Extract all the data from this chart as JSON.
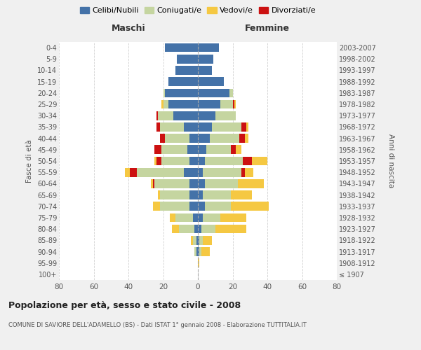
{
  "age_groups": [
    "100+",
    "95-99",
    "90-94",
    "85-89",
    "80-84",
    "75-79",
    "70-74",
    "65-69",
    "60-64",
    "55-59",
    "50-54",
    "45-49",
    "40-44",
    "35-39",
    "30-34",
    "25-29",
    "20-24",
    "15-19",
    "10-14",
    "5-9",
    "0-4"
  ],
  "birth_years": [
    "≤ 1907",
    "1908-1912",
    "1913-1917",
    "1918-1922",
    "1923-1927",
    "1928-1932",
    "1933-1937",
    "1938-1942",
    "1943-1947",
    "1948-1952",
    "1953-1957",
    "1958-1962",
    "1963-1967",
    "1968-1972",
    "1973-1977",
    "1978-1982",
    "1983-1987",
    "1988-1992",
    "1993-1997",
    "1998-2002",
    "2003-2007"
  ],
  "colors": {
    "celibi": "#4472a8",
    "coniugati": "#c5d5a0",
    "vedovi": "#f5c842",
    "divorziati": "#cc1111"
  },
  "males": {
    "celibi": [
      0,
      0,
      1,
      1,
      2,
      3,
      5,
      5,
      5,
      8,
      5,
      6,
      5,
      8,
      14,
      17,
      19,
      17,
      13,
      12,
      19
    ],
    "coniugati": [
      0,
      0,
      1,
      2,
      9,
      10,
      17,
      17,
      20,
      27,
      16,
      15,
      14,
      14,
      9,
      3,
      1,
      0,
      0,
      0,
      0
    ],
    "vedovi": [
      0,
      0,
      0,
      1,
      4,
      3,
      4,
      1,
      1,
      3,
      1,
      0,
      0,
      0,
      0,
      1,
      0,
      0,
      0,
      0,
      0
    ],
    "divorziati": [
      0,
      0,
      0,
      0,
      0,
      0,
      0,
      0,
      1,
      4,
      3,
      4,
      3,
      2,
      1,
      0,
      0,
      0,
      0,
      0,
      0
    ]
  },
  "females": {
    "celibi": [
      0,
      0,
      1,
      1,
      2,
      3,
      4,
      3,
      4,
      3,
      4,
      5,
      7,
      8,
      10,
      13,
      18,
      15,
      8,
      9,
      12
    ],
    "coniugati": [
      0,
      0,
      1,
      2,
      8,
      10,
      15,
      16,
      19,
      22,
      22,
      14,
      17,
      17,
      12,
      7,
      2,
      0,
      0,
      0,
      0
    ],
    "vedovi": [
      0,
      1,
      5,
      5,
      18,
      15,
      22,
      12,
      15,
      5,
      9,
      3,
      2,
      1,
      0,
      1,
      0,
      0,
      0,
      0,
      0
    ],
    "divorziati": [
      0,
      0,
      0,
      0,
      0,
      0,
      0,
      0,
      0,
      2,
      5,
      3,
      3,
      3,
      0,
      1,
      0,
      0,
      0,
      0,
      0
    ]
  },
  "xlim": 80,
  "title": "Popolazione per età, sesso e stato civile - 2008",
  "subtitle": "COMUNE DI SAVIORE DELL'ADAMELLO (BS) - Dati ISTAT 1° gennaio 2008 - Elaborazione TUTTITALIA.IT",
  "legend_labels": [
    "Celibi/Nubili",
    "Coniugati/e",
    "Vedovi/e",
    "Divorziati/e"
  ],
  "xlabel_left": "Maschi",
  "xlabel_right": "Femmine",
  "ylabel_left": "Fasce di età",
  "ylabel_right": "Anni di nascita",
  "bg_color": "#f0f0f0",
  "plot_bg_color": "#ffffff",
  "grid_color": "#cccccc"
}
